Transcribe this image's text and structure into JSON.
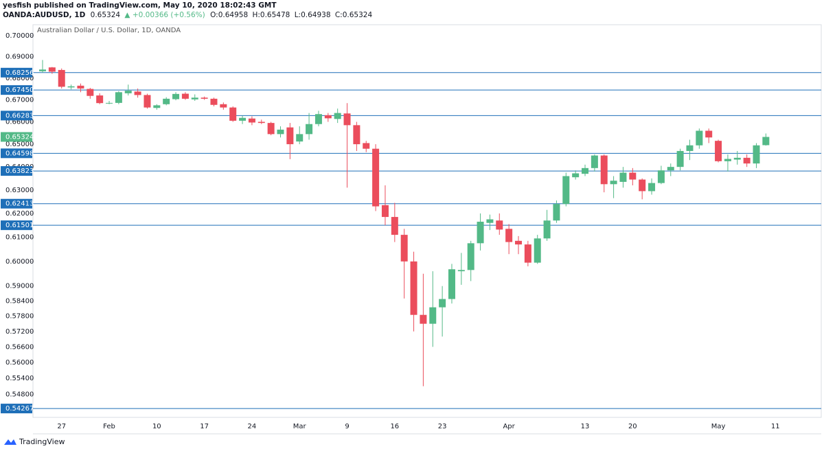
{
  "header": {
    "published": "yesfish published on TradingView.com, May 10, 2020 18:02:43 GMT",
    "symbol": "OANDA:AUDUSD, 1D",
    "price": "0.65324",
    "change": "+0.00366 (+0.56%)",
    "open": "O:0.64958",
    "high": "H:0.65478",
    "low": "L:0.64938",
    "close": "C:0.65324"
  },
  "footer": {
    "logo": "TradingView"
  },
  "chart_data": {
    "type": "candlestick",
    "subtitle": "Australian Dollar / U.S. Dollar, 1D, OANDA",
    "log_scale": true,
    "up_color": "#53b987",
    "down_color": "#eb4d5c",
    "level_color": "#1e6fb8",
    "categories": [
      null,
      null,
      "27",
      null,
      null,
      null,
      null,
      "Feb",
      null,
      null,
      null,
      null,
      "10",
      null,
      null,
      null,
      null,
      "17",
      null,
      null,
      null,
      null,
      "24",
      null,
      null,
      null,
      null,
      "Mar",
      null,
      null,
      null,
      null,
      "9",
      null,
      null,
      null,
      null,
      "16",
      null,
      null,
      null,
      null,
      "23",
      null,
      null,
      null,
      null,
      null,
      null,
      "Apr",
      null,
      null,
      null,
      null,
      null,
      null,
      null,
      "13",
      null,
      null,
      null,
      null,
      "20",
      null,
      null,
      null,
      null,
      null,
      null,
      null,
      null,
      "May",
      null,
      null,
      null,
      null,
      null,
      "11"
    ],
    "open": [
      0.6832,
      0.685,
      0.6838,
      0.6757,
      0.6765,
      0.675,
      0.672,
      0.6683,
      0.6686,
      0.673,
      0.6738,
      0.6722,
      0.6663,
      0.668,
      0.6703,
      0.6728,
      0.6702,
      0.671,
      0.6705,
      0.668,
      0.6665,
      0.6605,
      0.6615,
      0.66,
      0.6595,
      0.6545,
      0.6575,
      0.6512,
      0.6545,
      0.659,
      0.663,
      0.6613,
      0.6638,
      0.6585,
      0.6505,
      0.648,
      0.6235,
      0.6185,
      0.611,
      0.6,
      0.5785,
      0.575,
      0.5815,
      0.5848,
      0.596,
      0.5965,
      0.6075,
      0.616,
      0.617,
      0.6135,
      0.6085,
      0.607,
      0.5995,
      0.6095,
      0.617,
      0.624,
      0.6355,
      0.637,
      0.6395,
      0.645,
      0.6325,
      0.6335,
      0.6375,
      0.6345,
      0.6295,
      0.633,
      0.6385,
      0.64,
      0.647,
      0.6495,
      0.656,
      0.6515,
      0.6425,
      0.6432,
      0.644,
      0.6415,
      0.64958,
      null
    ],
    "high": [
      0.6885,
      0.6852,
      0.6845,
      0.677,
      0.6775,
      0.6755,
      0.673,
      0.6695,
      0.674,
      0.677,
      0.6752,
      0.6728,
      0.668,
      0.6712,
      0.6735,
      0.6735,
      0.6725,
      0.6715,
      0.671,
      0.6688,
      0.667,
      0.6628,
      0.6625,
      0.661,
      0.66,
      0.658,
      0.6595,
      0.658,
      0.664,
      0.665,
      0.664,
      0.666,
      0.6685,
      0.66,
      0.6515,
      0.65,
      0.632,
      0.6245,
      0.6135,
      0.604,
      0.595,
      0.596,
      0.59,
      0.599,
      0.6035,
      0.6085,
      0.62,
      0.6195,
      0.62,
      0.6155,
      0.6105,
      0.6085,
      0.611,
      0.6215,
      0.6255,
      0.6375,
      0.6385,
      0.641,
      0.6455,
      0.6455,
      0.636,
      0.64,
      0.6395,
      0.635,
      0.635,
      0.6405,
      0.6415,
      0.648,
      0.652,
      0.657,
      0.657,
      0.652,
      0.6455,
      0.647,
      0.6455,
      0.6505,
      0.65478,
      null
    ],
    "low": [
      0.6825,
      0.682,
      0.6752,
      0.6748,
      0.6735,
      0.6705,
      0.668,
      0.668,
      0.668,
      0.672,
      0.671,
      0.666,
      0.6655,
      0.6675,
      0.6698,
      0.67,
      0.6695,
      0.67,
      0.667,
      0.6655,
      0.66,
      0.659,
      0.6585,
      0.659,
      0.654,
      0.653,
      0.6434,
      0.65,
      0.652,
      0.658,
      0.66,
      0.6595,
      0.631,
      0.647,
      0.6465,
      0.621,
      0.615,
      0.608,
      0.585,
      0.572,
      0.551,
      0.566,
      0.57,
      0.583,
      0.5905,
      0.592,
      0.6045,
      0.613,
      0.611,
      0.603,
      0.603,
      0.598,
      0.599,
      0.6085,
      0.616,
      0.623,
      0.6345,
      0.636,
      0.638,
      0.629,
      0.6265,
      0.631,
      0.632,
      0.626,
      0.628,
      0.6325,
      0.636,
      0.6385,
      0.643,
      0.648,
      0.6505,
      0.642,
      0.638,
      0.641,
      0.64,
      0.6395,
      0.64938,
      null
    ],
    "close": [
      0.684,
      0.683,
      0.676,
      0.6762,
      0.6752,
      0.6718,
      0.6685,
      0.6686,
      0.6735,
      0.6742,
      0.6722,
      0.6665,
      0.6675,
      0.6705,
      0.6727,
      0.6705,
      0.671,
      0.6705,
      0.6677,
      0.6665,
      0.6605,
      0.6618,
      0.6597,
      0.6595,
      0.6545,
      0.6565,
      0.65,
      0.6545,
      0.659,
      0.6635,
      0.6616,
      0.664,
      0.6585,
      0.65,
      0.648,
      0.623,
      0.6185,
      0.611,
      0.6,
      0.5785,
      0.575,
      0.5815,
      0.5848,
      0.5968,
      0.5965,
      0.6075,
      0.6165,
      0.6175,
      0.6132,
      0.608,
      0.607,
      0.5995,
      0.6095,
      0.617,
      0.624,
      0.636,
      0.6372,
      0.6395,
      0.645,
      0.6325,
      0.634,
      0.6375,
      0.6345,
      0.6295,
      0.633,
      0.6385,
      0.64,
      0.647,
      0.6495,
      0.656,
      0.653,
      0.6425,
      0.6435,
      0.644,
      0.6415,
      0.6495,
      0.65324,
      null
    ],
    "ylim": [
      0.5394,
      0.7046
    ],
    "yticks": [
      {
        "value": 0.7,
        "label": "0.70000"
      },
      {
        "value": 0.69,
        "label": "0.69000"
      },
      {
        "value": 0.68,
        "label": "0.68000"
      },
      {
        "value": 0.67,
        "label": "0.67000"
      },
      {
        "value": 0.66,
        "label": "0.66000"
      },
      {
        "value": 0.65,
        "label": "0.65000"
      },
      {
        "value": 0.64,
        "label": "0.64000"
      },
      {
        "value": 0.63,
        "label": "0.63000"
      },
      {
        "value": 0.62,
        "label": "0.62000"
      },
      {
        "value": 0.61,
        "label": "0.61000"
      },
      {
        "value": 0.6,
        "label": "0.60000"
      },
      {
        "value": 0.59,
        "label": "0.59000"
      },
      {
        "value": 0.584,
        "label": "0.58400"
      },
      {
        "value": 0.578,
        "label": "0.57800"
      },
      {
        "value": 0.572,
        "label": "0.57200"
      },
      {
        "value": 0.566,
        "label": "0.56600"
      },
      {
        "value": 0.56,
        "label": "0.56000"
      },
      {
        "value": 0.554,
        "label": "0.55400"
      },
      {
        "value": 0.548,
        "label": "0.54800"
      }
    ],
    "levels": [
      {
        "value": 0.68256,
        "label": "0.68256"
      },
      {
        "value": 0.6745,
        "label": "0.67450"
      },
      {
        "value": 0.66283,
        "label": "0.66283"
      },
      {
        "value": 0.64598,
        "label": "0.64598"
      },
      {
        "value": 0.63823,
        "label": "0.63823"
      },
      {
        "value": 0.62413,
        "label": "0.62413"
      },
      {
        "value": 0.61501,
        "label": "0.61501"
      },
      {
        "value": 0.54267,
        "label": "0.54267"
      }
    ],
    "last_price": {
      "value": 0.65324,
      "label": "0.65324"
    }
  }
}
